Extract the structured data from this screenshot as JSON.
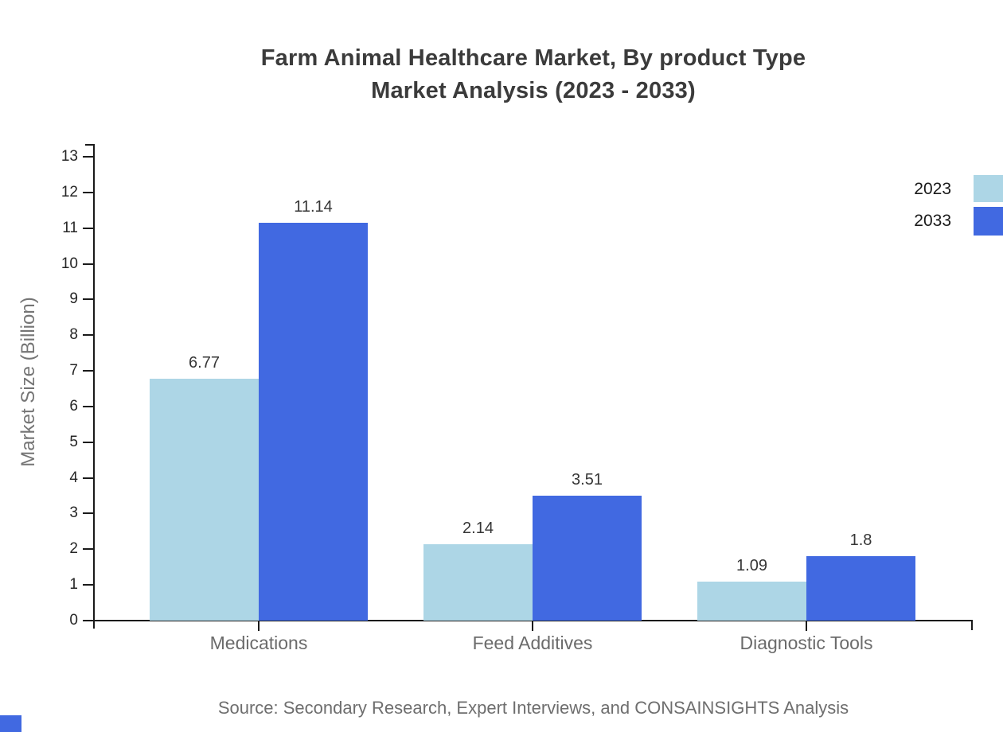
{
  "title": {
    "line1": "Farm Animal Healthcare Market, By product Type",
    "line2": "Market Analysis (2023 - 2033)"
  },
  "source_note": "Source: Secondary Research, Expert Interviews, and CONSAINSIGHTS Analysis",
  "chart_data": {
    "type": "bar",
    "title": "Farm Animal Healthcare Market, By product Type Market Analysis (2023 - 2033)",
    "categories": [
      "Medications",
      "Feed Additives",
      "Diagnostic Tools"
    ],
    "series": [
      {
        "name": "2023",
        "color": "#ADD6E6",
        "values": [
          6.77,
          2.14,
          1.09
        ]
      },
      {
        "name": "2033",
        "color": "#4169E1",
        "values": [
          11.14,
          3.51,
          1.8
        ]
      }
    ],
    "value_labels": [
      "6.77",
      "11.14",
      "2.14",
      "3.51",
      "1.09",
      "1.8"
    ],
    "xlabel": "",
    "ylabel": "Market Size (Billion)",
    "ylim": [
      0,
      13
    ],
    "yticks": [
      0,
      1,
      2,
      3,
      4,
      5,
      6,
      7,
      8,
      9,
      10,
      11,
      12,
      13
    ],
    "grid": false,
    "legend_position": "top-right"
  },
  "colors": {
    "axis": "#1a1a1a",
    "title_text": "#3b3b3b",
    "tick_text": "#262626",
    "label_text": "#6b6b6b",
    "series_2023": "#ADD6E6",
    "series_2033": "#4169E1"
  },
  "footer": {
    "mark_color": "#4169E1"
  }
}
